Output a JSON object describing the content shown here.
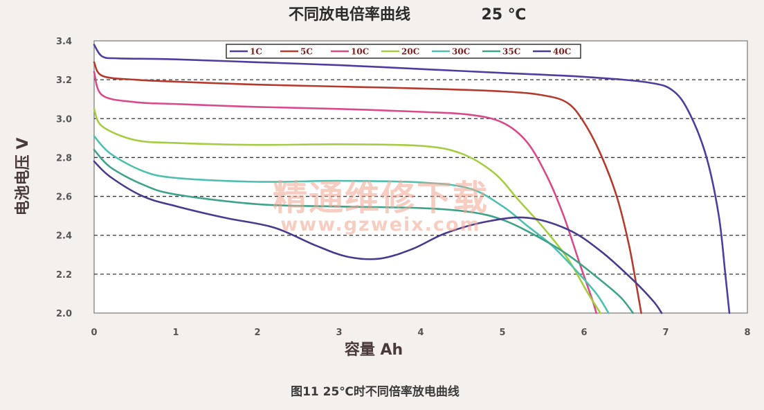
{
  "caption": "图11 25℃时不同倍率放电曲线",
  "watermark": {
    "cn": "精通维修下载",
    "url": "www.gzweix.com"
  },
  "chart_data": {
    "type": "line",
    "title_main": "不同放电倍率曲线",
    "title_temp": "25 ℃",
    "xlabel": "容量 Ah",
    "ylabel": "电池电压 V",
    "xlim": [
      0,
      8
    ],
    "ylim": [
      2.0,
      3.4
    ],
    "xticks": [
      "0",
      "1",
      "2",
      "3",
      "4",
      "5",
      "6",
      "7",
      "8"
    ],
    "yticks": [
      "2.0",
      "2.2",
      "2.4",
      "2.6",
      "2.8",
      "3.0",
      "3.2",
      "3.4"
    ],
    "grid": "horizontal-dashed",
    "legend_position": "top",
    "series": [
      {
        "name": "1C",
        "color": "#4f3c9e",
        "points": [
          [
            0,
            3.38
          ],
          [
            0.1,
            3.32
          ],
          [
            0.3,
            3.31
          ],
          [
            1,
            3.305
          ],
          [
            2,
            3.29
          ],
          [
            3,
            3.275
          ],
          [
            4,
            3.255
          ],
          [
            5,
            3.235
          ],
          [
            6,
            3.215
          ],
          [
            6.8,
            3.185
          ],
          [
            7.1,
            3.14
          ],
          [
            7.3,
            3.02
          ],
          [
            7.5,
            2.8
          ],
          [
            7.65,
            2.5
          ],
          [
            7.73,
            2.2
          ],
          [
            7.78,
            2.0
          ]
        ]
      },
      {
        "name": "5C",
        "color": "#b53a2e",
        "points": [
          [
            0,
            3.29
          ],
          [
            0.1,
            3.22
          ],
          [
            0.5,
            3.2
          ],
          [
            1,
            3.19
          ],
          [
            2,
            3.175
          ],
          [
            3,
            3.165
          ],
          [
            4,
            3.155
          ],
          [
            5,
            3.14
          ],
          [
            5.5,
            3.12
          ],
          [
            5.8,
            3.08
          ],
          [
            6.0,
            2.98
          ],
          [
            6.2,
            2.82
          ],
          [
            6.4,
            2.6
          ],
          [
            6.55,
            2.35
          ],
          [
            6.65,
            2.12
          ],
          [
            6.7,
            2.0
          ]
        ]
      },
      {
        "name": "10C",
        "color": "#d84a8a",
        "points": [
          [
            0,
            3.24
          ],
          [
            0.1,
            3.12
          ],
          [
            0.5,
            3.085
          ],
          [
            1,
            3.075
          ],
          [
            2,
            3.06
          ],
          [
            3,
            3.05
          ],
          [
            4,
            3.035
          ],
          [
            4.6,
            3.02
          ],
          [
            5,
            2.98
          ],
          [
            5.3,
            2.88
          ],
          [
            5.55,
            2.7
          ],
          [
            5.75,
            2.5
          ],
          [
            5.95,
            2.25
          ],
          [
            6.1,
            2.07
          ],
          [
            6.15,
            2.0
          ]
        ]
      },
      {
        "name": "20C",
        "color": "#a6cc42",
        "points": [
          [
            0,
            3.05
          ],
          [
            0.1,
            2.96
          ],
          [
            0.5,
            2.89
          ],
          [
            1,
            2.875
          ],
          [
            2,
            2.865
          ],
          [
            3,
            2.868
          ],
          [
            4,
            2.86
          ],
          [
            4.5,
            2.82
          ],
          [
            4.9,
            2.72
          ],
          [
            5.2,
            2.58
          ],
          [
            5.5,
            2.44
          ],
          [
            5.8,
            2.28
          ],
          [
            6.05,
            2.1
          ],
          [
            6.2,
            2.0
          ]
        ]
      },
      {
        "name": "30C",
        "color": "#4fc0b0",
        "points": [
          [
            0,
            2.91
          ],
          [
            0.2,
            2.82
          ],
          [
            0.6,
            2.73
          ],
          [
            1,
            2.695
          ],
          [
            2,
            2.675
          ],
          [
            3,
            2.68
          ],
          [
            4,
            2.672
          ],
          [
            4.6,
            2.64
          ],
          [
            5,
            2.55
          ],
          [
            5.3,
            2.45
          ],
          [
            5.6,
            2.35
          ],
          [
            5.9,
            2.22
          ],
          [
            6.15,
            2.1
          ],
          [
            6.3,
            2.0
          ]
        ]
      },
      {
        "name": "35C",
        "color": "#3ea38a",
        "points": [
          [
            0,
            2.84
          ],
          [
            0.2,
            2.75
          ],
          [
            0.6,
            2.66
          ],
          [
            1,
            2.61
          ],
          [
            2,
            2.56
          ],
          [
            3,
            2.548
          ],
          [
            4,
            2.54
          ],
          [
            4.6,
            2.52
          ],
          [
            5.0,
            2.48
          ],
          [
            5.4,
            2.4
          ],
          [
            5.8,
            2.3
          ],
          [
            6.2,
            2.17
          ],
          [
            6.45,
            2.08
          ],
          [
            6.6,
            2.0
          ]
        ]
      },
      {
        "name": "40C",
        "color": "#4a3a8e",
        "points": [
          [
            0,
            2.78
          ],
          [
            0.2,
            2.7
          ],
          [
            0.6,
            2.6
          ],
          [
            1,
            2.55
          ],
          [
            1.6,
            2.49
          ],
          [
            2.2,
            2.44
          ],
          [
            2.7,
            2.35
          ],
          [
            3.1,
            2.29
          ],
          [
            3.5,
            2.28
          ],
          [
            3.9,
            2.33
          ],
          [
            4.3,
            2.41
          ],
          [
            4.8,
            2.47
          ],
          [
            5.3,
            2.49
          ],
          [
            5.8,
            2.43
          ],
          [
            6.2,
            2.32
          ],
          [
            6.6,
            2.17
          ],
          [
            6.85,
            2.06
          ],
          [
            6.95,
            2.0
          ]
        ]
      }
    ]
  }
}
